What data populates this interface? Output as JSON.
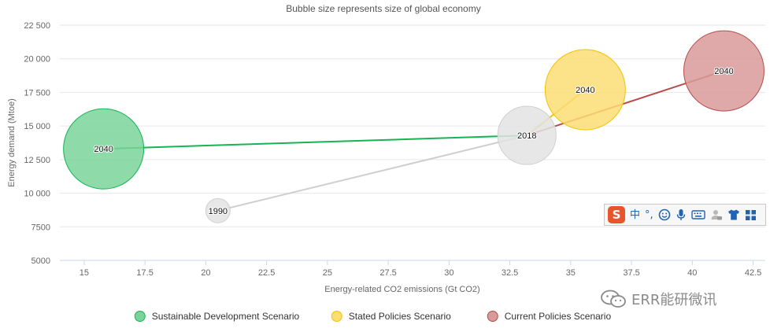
{
  "chart_data": {
    "type": "bubble",
    "title": "Bubble size represents size of global economy",
    "xlabel": "Energy-related CO2 emissions (Gt CO2)",
    "ylabel": "Energy demand (Mtoe)",
    "xlim": [
      14,
      43
    ],
    "ylim": [
      5000,
      22500
    ],
    "x_ticks": [
      15,
      17.5,
      20,
      22.5,
      25,
      27.5,
      30,
      32.5,
      35,
      37.5,
      40,
      42.5
    ],
    "x_tick_labels": [
      "15",
      "17.5",
      "20",
      "22.5",
      "25",
      "27.5",
      "30",
      "32.5",
      "35",
      "37.5",
      "40",
      "42.5"
    ],
    "y_ticks": [
      5000,
      7500,
      10000,
      12500,
      15000,
      17500,
      20000,
      22500
    ],
    "y_tick_labels": [
      "5000",
      "7500",
      "10 000",
      "12 500",
      "15 000",
      "17 500",
      "20 000",
      "22 500"
    ],
    "grid": true,
    "legend_position": "bottom-center",
    "history": [
      {
        "label": "1990",
        "x": 20.5,
        "y": 8700,
        "size": 1.0
      },
      {
        "label": "2018",
        "x": 33.2,
        "y": 14300,
        "size": 2.4
      }
    ],
    "history_color": "#d6d6d6",
    "series": [
      {
        "name": "Sustainable Development Scenario",
        "color": "#16b452",
        "fill": "#7ad49a",
        "points": [
          {
            "label": "2040",
            "x": 15.8,
            "y": 13300,
            "size": 3.3
          }
        ]
      },
      {
        "name": "Stated Policies Scenario",
        "color": "#f2c200",
        "fill": "#fbdd74",
        "points": [
          {
            "label": "2040",
            "x": 35.6,
            "y": 17700,
            "size": 3.3
          }
        ]
      },
      {
        "name": "Current Policies Scenario",
        "color": "#b84a4a",
        "fill": "#d99a9a",
        "points": [
          {
            "label": "2040",
            "x": 41.3,
            "y": 19100,
            "size": 3.3
          }
        ]
      }
    ]
  },
  "ime_toolbar": {
    "logo": "S",
    "items": [
      {
        "name": "ime-chinese-mode-button",
        "glyph": "中"
      },
      {
        "name": "ime-punctuation-button",
        "glyph": "°,"
      },
      {
        "name": "ime-emoji-icon",
        "icon": "smiley-icon"
      },
      {
        "name": "ime-voice-icon",
        "icon": "microphone-icon"
      },
      {
        "name": "ime-keyboard-icon",
        "icon": "keyboard-icon"
      },
      {
        "name": "ime-user-icon",
        "icon": "user-icon"
      },
      {
        "name": "ime-skin-icon",
        "icon": "tshirt-icon"
      },
      {
        "name": "ime-toolbox-icon",
        "icon": "grid-icon"
      }
    ]
  },
  "watermark": {
    "text": "ERR能研微讯",
    "icon": "wechat-icon"
  }
}
